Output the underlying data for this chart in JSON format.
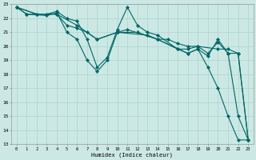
{
  "xlabel": "Humidex (Indice chaleur)",
  "bg_color": "#cce8e4",
  "grid_color": "#b0d8d0",
  "line_color": "#006666",
  "xlim": [
    -0.5,
    23.5
  ],
  "ylim": [
    13,
    23
  ],
  "xtick_labels": [
    "0",
    "1",
    "2",
    "3",
    "4",
    "5",
    "6",
    "7",
    "8",
    "9",
    "10",
    "11",
    "12",
    "13",
    "14",
    "15",
    "16",
    "17",
    "18",
    "19",
    "20",
    "21",
    "22",
    "23"
  ],
  "ytick_labels": [
    "13",
    "14",
    "15",
    "16",
    "17",
    "18",
    "19",
    "20",
    "21",
    "22",
    "23"
  ],
  "lines": [
    {
      "x": [
        0,
        1,
        3,
        4,
        5,
        6,
        7,
        8,
        9,
        10,
        13,
        14,
        17,
        18,
        19,
        20,
        21,
        22,
        23
      ],
      "y": [
        22.8,
        22.3,
        22.2,
        22.4,
        21.0,
        20.5,
        19.0,
        18.2,
        19.0,
        21.0,
        20.8,
        20.5,
        19.5,
        19.8,
        18.5,
        17.0,
        15.0,
        13.3,
        13.3
      ]
    },
    {
      "x": [
        0,
        1,
        3,
        4,
        5,
        6,
        7,
        8,
        9,
        10,
        11,
        12,
        13,
        14,
        16,
        17,
        18,
        19,
        20,
        21,
        22,
        23
      ],
      "y": [
        22.8,
        22.3,
        22.3,
        22.5,
        22.0,
        21.8,
        20.5,
        18.5,
        19.2,
        21.2,
        22.8,
        21.5,
        21.0,
        20.8,
        19.8,
        19.8,
        20.0,
        19.5,
        20.3,
        19.5,
        15.0,
        13.3
      ]
    },
    {
      "x": [
        0,
        2,
        4,
        5,
        6,
        7,
        8,
        10,
        11,
        14,
        15,
        16,
        17,
        18,
        20,
        21,
        22,
        23
      ],
      "y": [
        22.8,
        22.3,
        22.3,
        21.5,
        21.3,
        21.0,
        20.5,
        21.0,
        21.2,
        20.5,
        20.5,
        20.2,
        20.0,
        20.0,
        19.8,
        19.8,
        19.5,
        13.3
      ]
    },
    {
      "x": [
        0,
        2,
        4,
        6,
        8,
        10,
        12,
        14,
        16,
        17,
        18,
        19,
        20,
        21,
        22,
        23
      ],
      "y": [
        22.8,
        22.3,
        22.3,
        21.5,
        20.5,
        21.0,
        21.0,
        20.5,
        19.8,
        19.5,
        19.8,
        19.3,
        20.5,
        19.5,
        19.5,
        13.3
      ]
    }
  ]
}
